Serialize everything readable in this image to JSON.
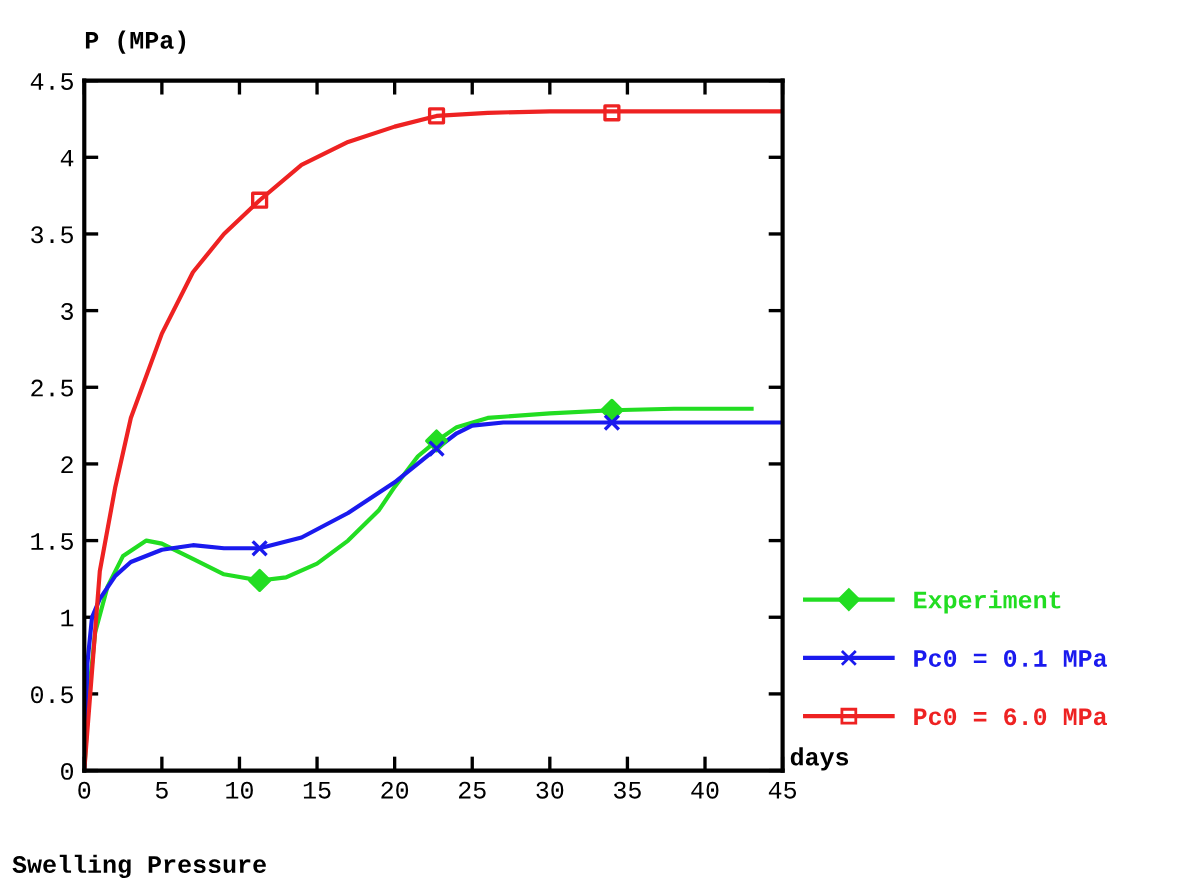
{
  "chart_data": {
    "type": "line",
    "title": "Swelling Pressure",
    "xlabel": "days",
    "ylabel": "P (MPa)",
    "xlim": [
      0,
      45
    ],
    "xticks": [
      0,
      5,
      10,
      15,
      20,
      25,
      30,
      35,
      40,
      45
    ],
    "ylim": [
      0,
      4.5
    ],
    "yticks": [
      0,
      0.5,
      1,
      1.5,
      2,
      2.5,
      3,
      3.5,
      4,
      4.5
    ],
    "grid": false,
    "legend": "right",
    "marker": "none",
    "line_style": "solid",
    "series": [
      {
        "name": "Experiment",
        "color": "#22dd22",
        "x": [
          0,
          0.3,
          0.7,
          1.5,
          2.5,
          4,
          5,
          7,
          9,
          11.3,
          13,
          15,
          17,
          19,
          20,
          21.5,
          22.7,
          24,
          26,
          30,
          34,
          38,
          43
        ],
        "values": [
          0,
          0.5,
          0.9,
          1.2,
          1.4,
          1.5,
          1.48,
          1.38,
          1.28,
          1.24,
          1.26,
          1.35,
          1.5,
          1.7,
          1.85,
          2.05,
          2.15,
          2.24,
          2.3,
          2.33,
          2.35,
          2.36,
          2.36
        ]
      },
      {
        "type": "scatter",
        "color": "#22dd22",
        "marker": "diamond",
        "x": [
          11.3,
          22.7,
          34
        ],
        "values": [
          1.24,
          2.15,
          2.35
        ]
      },
      {
        "name": "Pc0 = 0.1 MPa",
        "color": "#1a1aee",
        "x": [
          0,
          0.2,
          0.5,
          1,
          2,
          3,
          5,
          7,
          9,
          11.3,
          14,
          17,
          20,
          22.7,
          24,
          25,
          27,
          34,
          45
        ],
        "values": [
          0,
          0.7,
          1.0,
          1.12,
          1.27,
          1.36,
          1.44,
          1.47,
          1.45,
          1.45,
          1.52,
          1.68,
          1.88,
          2.1,
          2.2,
          2.25,
          2.27,
          2.27,
          2.27
        ]
      },
      {
        "type": "scatter",
        "color": "#1a1aee",
        "marker": "cross",
        "x": [
          11.3,
          22.7,
          34
        ],
        "values": [
          1.45,
          2.1,
          2.27
        ]
      },
      {
        "name": "Pc0 = 6.0 MPa",
        "color": "#ee2222",
        "x": [
          0,
          1,
          2,
          3,
          5,
          7,
          9,
          11.3,
          14,
          17,
          20,
          22.7,
          26,
          30,
          34,
          45
        ],
        "values": [
          0,
          1.3,
          1.85,
          2.3,
          2.85,
          3.25,
          3.5,
          3.72,
          3.95,
          4.1,
          4.2,
          4.27,
          4.29,
          4.3,
          4.3,
          4.3
        ]
      },
      {
        "type": "scatter",
        "color": "#ee2222",
        "marker": "square",
        "x": [
          11.3,
          22.7,
          34
        ],
        "values": [
          3.72,
          4.27,
          4.29
        ]
      }
    ]
  }
}
